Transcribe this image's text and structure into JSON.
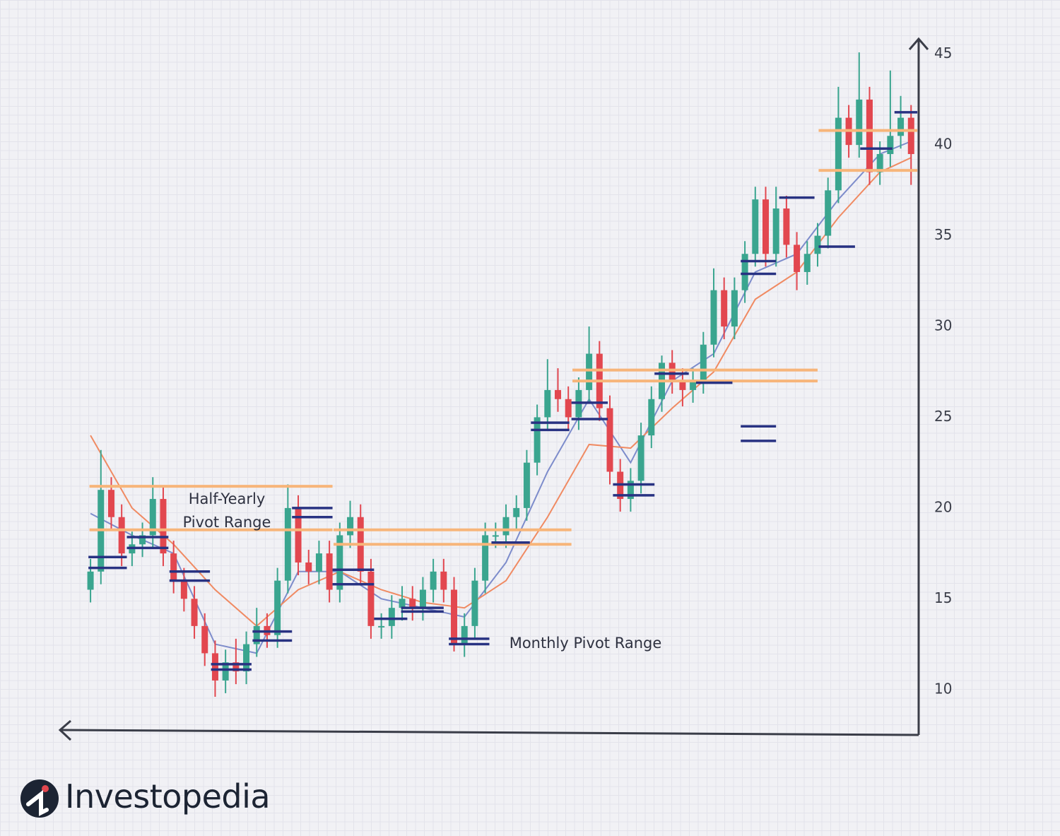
{
  "chart_data": {
    "type": "candlestick",
    "xlim": [
      -2.93,
      79.73
    ],
    "ylim": [
      7.5,
      46
    ],
    "yticks": [
      10,
      15,
      20,
      25,
      30,
      35,
      40,
      45
    ],
    "grid": false,
    "x": [
      0,
      1,
      2,
      3,
      4,
      5,
      6,
      7,
      8,
      9,
      10,
      11,
      12,
      13,
      14,
      15,
      16,
      17,
      18,
      19,
      20,
      21,
      22,
      23,
      24,
      25,
      26,
      27,
      28,
      29,
      30,
      31,
      32,
      33,
      34,
      35,
      36,
      37,
      38,
      39,
      40,
      41,
      42,
      43,
      44,
      45,
      46,
      47,
      48,
      49,
      50,
      51,
      52,
      53,
      54,
      55,
      56,
      57,
      58,
      59,
      60,
      61,
      62,
      63,
      64,
      65,
      66,
      67,
      68,
      69,
      70,
      71,
      72,
      73,
      74,
      75,
      76,
      77,
      78,
      79
    ],
    "candles": {
      "up_color": "#3aa58f",
      "down_color": "#e2474f",
      "open": [
        15.5,
        16.5,
        21,
        19.5,
        17.5,
        18,
        18.5,
        20.5,
        17.5,
        16,
        15,
        13.5,
        12,
        10.5,
        11.5,
        11,
        12.5,
        13.5,
        13,
        16,
        20,
        17,
        16.5,
        17.5,
        15.5,
        18.5,
        19.5,
        16.5,
        13.5,
        13.5,
        14.5,
        15,
        14.5,
        15.5,
        16.5,
        15.5,
        12.5,
        13.5,
        16,
        18.5,
        18.5,
        19.5,
        20,
        22.5,
        25,
        26.5,
        26,
        25,
        26.5,
        28.5,
        25.5,
        22,
        20.5,
        21.5,
        24,
        26,
        28,
        27,
        26.5,
        27,
        29,
        32,
        30,
        32,
        34,
        37,
        34,
        36.5,
        34.5,
        33,
        34,
        35,
        37.5,
        41.5,
        40,
        42.5,
        38.5,
        39.5,
        40.5,
        41.5
      ],
      "high": [
        17.2,
        23.2,
        21.7,
        20.2,
        18.7,
        19.2,
        21.7,
        21.2,
        18.2,
        16.7,
        15.7,
        14.2,
        12.7,
        12.2,
        12.8,
        13.2,
        14.5,
        14.2,
        16.7,
        21.3,
        20.7,
        17.7,
        18.2,
        18.2,
        19.2,
        20.4,
        20.2,
        17.2,
        14.2,
        15.2,
        15.7,
        15.7,
        16.2,
        17.2,
        17.2,
        16.2,
        14.2,
        16.7,
        19.2,
        19.2,
        20.2,
        20.7,
        23.2,
        25.7,
        28.2,
        27.7,
        26.7,
        27.2,
        30,
        29.2,
        26.2,
        22.7,
        22.2,
        24.7,
        26.7,
        28.4,
        28.7,
        27.7,
        27.7,
        29.7,
        33.2,
        32.7,
        32.7,
        34.7,
        37.7,
        37.7,
        37.7,
        37.2,
        35.2,
        34.7,
        35.7,
        38.2,
        43.2,
        42.2,
        45.1,
        43.2,
        40.2,
        44.1,
        42.7,
        42.2
      ],
      "low": [
        14.8,
        15.8,
        18.8,
        16.8,
        16.8,
        17.3,
        17.8,
        16.8,
        15.3,
        14.3,
        12.8,
        11.3,
        9.6,
        9.8,
        10.3,
        10.3,
        11.8,
        12.3,
        12.3,
        15.3,
        16.3,
        15.8,
        15.8,
        14.8,
        14.8,
        17.8,
        15.8,
        12.8,
        12.8,
        12.8,
        13.8,
        13.8,
        13.8,
        14.8,
        14.8,
        12.1,
        11.8,
        12.8,
        15.3,
        17.8,
        17.8,
        18.8,
        19.3,
        21.8,
        24.3,
        25.3,
        24.3,
        24.3,
        25.8,
        24.8,
        21.3,
        19.8,
        19.8,
        20.8,
        23.3,
        25.3,
        26.3,
        25.6,
        25.8,
        26.3,
        28.3,
        29.3,
        29.3,
        31.3,
        33.3,
        33.3,
        33.3,
        33.8,
        32,
        32.3,
        33.3,
        34.3,
        36.8,
        39.3,
        39.3,
        37.8,
        37.8,
        38.8,
        39.8,
        37.8
      ],
      "close": [
        16.5,
        21,
        19.5,
        17.5,
        18,
        18.5,
        20.5,
        17.5,
        16,
        15,
        13.5,
        12,
        10.5,
        11.5,
        11,
        12.5,
        13.5,
        13,
        16,
        20,
        17,
        16.5,
        17.5,
        15.5,
        18.5,
        19.5,
        16.5,
        13.5,
        13.5,
        14.5,
        15,
        14.5,
        15.5,
        16.5,
        15.5,
        12.5,
        13.5,
        16,
        18.5,
        18.5,
        19.5,
        20,
        22.5,
        25,
        26.5,
        26,
        25,
        26.5,
        28.5,
        25.5,
        22,
        20.5,
        21.5,
        24,
        26,
        28,
        27,
        26.5,
        27,
        29,
        32,
        30,
        32,
        34,
        37,
        34,
        36.5,
        34.5,
        33,
        34,
        35,
        37.5,
        41.5,
        40,
        42.5,
        38.5,
        39.5,
        40.5,
        41.5,
        39.5
      ]
    },
    "moving_averages": [
      {
        "color": "#7d8ccb",
        "x": [
          0,
          4,
          8,
          12,
          16,
          20,
          24,
          28,
          32,
          36,
          40,
          44,
          48,
          52,
          56,
          60,
          64,
          68,
          72,
          76,
          79
        ],
        "values": [
          19.7,
          18.5,
          17.5,
          12.5,
          12,
          16.5,
          16.5,
          15,
          14.5,
          14,
          17,
          22,
          26,
          22.5,
          27,
          28.5,
          33,
          34,
          37,
          39.5,
          40.2
        ]
      },
      {
        "color": "#f08a62",
        "x": [
          0,
          4,
          8,
          12,
          16,
          20,
          24,
          28,
          32,
          36,
          40,
          44,
          48,
          52,
          56,
          60,
          64,
          68,
          72,
          76,
          79
        ],
        "values": [
          24,
          20,
          18,
          15.5,
          13.5,
          15.5,
          16.5,
          15.5,
          14.8,
          14.5,
          16,
          19.5,
          23.5,
          23.3,
          25.5,
          27.5,
          31.5,
          33,
          36,
          38.5,
          39.3
        ]
      }
    ],
    "half_yearly_pivots": {
      "color": "#f7b57a",
      "segments": [
        {
          "x": [
            -0.1,
            23.3
          ],
          "levels": [
            21.2,
            18.8
          ]
        },
        {
          "x": [
            23.4,
            46.3
          ],
          "levels": [
            18.8,
            18.0
          ]
        },
        {
          "x": [
            46.4,
            70.0
          ],
          "levels": [
            27.6,
            27.0
          ]
        },
        {
          "x": [
            70.1,
            79.6
          ],
          "levels": [
            40.8,
            38.6
          ]
        }
      ]
    },
    "monthly_pivots": {
      "color": "#283282",
      "segments": [
        {
          "x": [
            -0.2,
            3.5
          ],
          "levels": [
            17.3,
            16.7
          ]
        },
        {
          "x": [
            3.5,
            7.5
          ],
          "levels": [
            18.4,
            17.8
          ]
        },
        {
          "x": [
            7.6,
            11.5
          ],
          "levels": [
            16.5,
            16.0
          ]
        },
        {
          "x": [
            11.6,
            15.5
          ],
          "levels": [
            11.4,
            11.1
          ]
        },
        {
          "x": [
            15.6,
            19.4
          ],
          "levels": [
            13.2,
            12.7
          ]
        },
        {
          "x": [
            19.4,
            23.3
          ],
          "levels": [
            20.0,
            19.5
          ]
        },
        {
          "x": [
            23.3,
            27.3
          ],
          "levels": [
            16.6,
            15.8
          ]
        },
        {
          "x": [
            27.3,
            30.5
          ],
          "levels": [
            13.9
          ]
        },
        {
          "x": [
            29.9,
            34.0
          ],
          "levels": [
            14.5,
            14.3
          ]
        },
        {
          "x": [
            34.5,
            38.4
          ],
          "levels": [
            12.8,
            12.5
          ]
        },
        {
          "x": [
            38.6,
            42.3
          ],
          "levels": [
            18.1
          ]
        },
        {
          "x": [
            42.4,
            46.1
          ],
          "levels": [
            24.7,
            24.3
          ]
        },
        {
          "x": [
            46.3,
            49.8
          ],
          "levels": [
            25.8,
            24.9
          ]
        },
        {
          "x": [
            50.3,
            54.3
          ],
          "levels": [
            21.3,
            20.7
          ]
        },
        {
          "x": [
            54.3,
            57.6
          ],
          "levels": [
            27.4
          ]
        },
        {
          "x": [
            58.3,
            61.8
          ],
          "levels": [
            26.9
          ]
        },
        {
          "x": [
            62.6,
            66.0
          ],
          "levels": [
            24.5,
            23.7
          ]
        },
        {
          "x": [
            62.6,
            66.0
          ],
          "levels": [
            33.6,
            32.9
          ]
        },
        {
          "x": [
            66.3,
            69.7
          ],
          "levels": [
            37.1
          ]
        },
        {
          "x": [
            70.1,
            73.6
          ],
          "levels": [
            34.4
          ]
        },
        {
          "x": [
            74.1,
            77.2
          ],
          "levels": [
            39.8
          ]
        },
        {
          "x": [
            77.4,
            79.6
          ],
          "levels": [
            41.8
          ]
        }
      ]
    },
    "annotations": [
      "Half-Yearly Pivot Range",
      "Monthly Pivot Range"
    ]
  },
  "brand": "Investopedia"
}
